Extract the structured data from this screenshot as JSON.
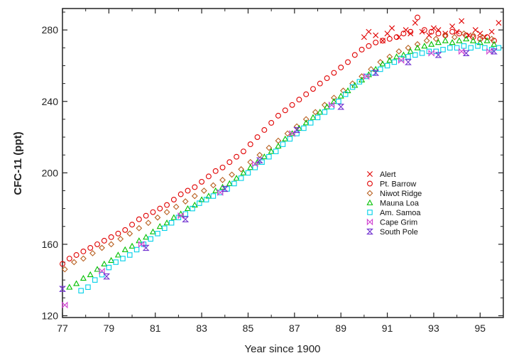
{
  "chart_data": {
    "type": "scatter",
    "title": "",
    "xlabel": "Year since 1900",
    "ylabel": "CFC-11 (ppt)",
    "xlim": [
      77,
      96
    ],
    "ylim": [
      119,
      292
    ],
    "x_ticks": [
      77,
      79,
      81,
      83,
      85,
      87,
      89,
      91,
      93,
      95
    ],
    "y_ticks": [
      120,
      160,
      200,
      240,
      280
    ],
    "grid": false,
    "legend_position": "center-right",
    "series": [
      {
        "name": "Alert",
        "color": "#e00000",
        "marker": "x",
        "x": [
          90.0,
          90.2,
          90.5,
          90.8,
          91.0,
          91.2,
          91.5,
          91.8,
          92.0,
          92.2,
          92.5,
          92.8,
          93.0,
          93.2,
          93.5,
          93.8,
          94.0,
          94.2,
          94.5,
          94.8,
          95.0,
          95.2,
          95.5,
          95.8
        ],
        "y": [
          276,
          279,
          277,
          274,
          278,
          281,
          276,
          280,
          278,
          284,
          279,
          277,
          281,
          280,
          278,
          282,
          279,
          285,
          277,
          280,
          278,
          276,
          279,
          284
        ]
      },
      {
        "name": "Pt. Barrow",
        "color": "#e00000",
        "marker": "circle",
        "x": [
          77.0,
          77.3,
          77.6,
          77.9,
          78.2,
          78.5,
          78.8,
          79.1,
          79.4,
          79.7,
          80.0,
          80.3,
          80.6,
          80.9,
          81.2,
          81.5,
          81.8,
          82.1,
          82.4,
          82.7,
          83.0,
          83.3,
          83.6,
          83.9,
          84.2,
          84.5,
          84.8,
          85.1,
          85.4,
          85.7,
          86.0,
          86.3,
          86.6,
          86.9,
          87.2,
          87.5,
          87.8,
          88.1,
          88.4,
          88.7,
          89.0,
          89.3,
          89.6,
          89.9,
          90.2,
          90.5,
          90.8,
          91.1,
          91.4,
          91.7,
          92.0,
          92.3,
          92.6,
          92.9,
          93.2,
          93.5,
          93.8,
          94.1,
          94.4,
          94.7,
          95.0,
          95.3,
          95.6
        ],
        "y": [
          149,
          152,
          154,
          156,
          158,
          160,
          162,
          164,
          166,
          168,
          171,
          174,
          176,
          178,
          180,
          182,
          185,
          188,
          190,
          192,
          195,
          198,
          201,
          203,
          206,
          209,
          212,
          216,
          220,
          224,
          228,
          232,
          235,
          238,
          241,
          244,
          247,
          250,
          253,
          256,
          259,
          262,
          266,
          269,
          271,
          273,
          274,
          275,
          276,
          278,
          279,
          287,
          280,
          279,
          278,
          277,
          279,
          278,
          277,
          276,
          275,
          276,
          274
        ]
      },
      {
        "name": "Niwot Ridge",
        "color": "#b86020",
        "marker": "diamond",
        "x": [
          77.1,
          77.5,
          77.9,
          78.3,
          78.7,
          79.1,
          79.5,
          79.9,
          80.3,
          80.7,
          81.1,
          81.5,
          81.9,
          82.3,
          82.7,
          83.1,
          83.5,
          83.9,
          84.3,
          84.7,
          85.1,
          85.5,
          85.9,
          86.3,
          86.7,
          87.1,
          87.5,
          87.9,
          88.3,
          88.7,
          89.1,
          89.5,
          89.9,
          90.3,
          90.7,
          91.1,
          91.5,
          91.9,
          92.3,
          92.7,
          93.1,
          93.5,
          93.9,
          94.3,
          94.7,
          95.1,
          95.5
        ],
        "y": [
          146,
          150,
          152,
          155,
          158,
          160,
          163,
          166,
          169,
          172,
          175,
          178,
          181,
          184,
          187,
          190,
          193,
          196,
          199,
          202,
          206,
          210,
          214,
          218,
          222,
          226,
          230,
          234,
          238,
          242,
          246,
          250,
          254,
          258,
          262,
          265,
          268,
          270,
          272,
          274,
          275,
          277,
          276,
          278,
          277,
          276,
          275
        ]
      },
      {
        "name": "Mauna Loa",
        "color": "#00c000",
        "marker": "triangle",
        "x": [
          77.3,
          77.6,
          77.9,
          78.2,
          78.5,
          78.8,
          79.1,
          79.4,
          79.7,
          80.0,
          80.3,
          80.6,
          80.9,
          81.2,
          81.5,
          81.8,
          82.1,
          82.4,
          82.7,
          83.0,
          83.3,
          83.6,
          83.9,
          84.2,
          84.5,
          84.8,
          85.1,
          85.4,
          85.7,
          86.0,
          86.3,
          86.6,
          86.9,
          87.2,
          87.5,
          87.8,
          88.1,
          88.4,
          88.7,
          89.0,
          89.3,
          89.6,
          89.9,
          90.2,
          90.5,
          90.8,
          91.1,
          91.4,
          91.7,
          92.0,
          92.3,
          92.6,
          92.9,
          93.2,
          93.5,
          93.8,
          94.1,
          94.4,
          94.7,
          95.0,
          95.3,
          95.6
        ],
        "y": [
          136,
          138,
          141,
          143,
          146,
          149,
          151,
          154,
          157,
          159,
          162,
          164,
          167,
          170,
          172,
          175,
          177,
          180,
          182,
          185,
          187,
          190,
          192,
          194,
          197,
          200,
          203,
          206,
          209,
          212,
          215,
          219,
          222,
          225,
          228,
          231,
          234,
          237,
          240,
          243,
          246,
          249,
          252,
          255,
          258,
          261,
          263,
          265,
          266,
          268,
          270,
          271,
          272,
          273,
          274,
          273,
          274,
          275,
          274,
          273,
          274,
          272
        ]
      },
      {
        "name": "Am. Samoa",
        "color": "#00d0e8",
        "marker": "square",
        "x": [
          77.8,
          78.1,
          78.4,
          78.7,
          79.0,
          79.3,
          79.6,
          79.9,
          80.2,
          80.5,
          80.8,
          81.1,
          81.4,
          81.7,
          82.0,
          82.3,
          82.6,
          82.9,
          83.2,
          83.5,
          83.8,
          84.1,
          84.4,
          84.7,
          85.0,
          85.3,
          85.6,
          85.9,
          86.2,
          86.5,
          86.8,
          87.1,
          87.4,
          87.7,
          88.0,
          88.3,
          88.6,
          88.9,
          89.2,
          89.5,
          89.8,
          90.1,
          90.4,
          90.7,
          91.0,
          91.3,
          91.6,
          91.9,
          92.2,
          92.5,
          92.8,
          93.1,
          93.4,
          93.7,
          94.0,
          94.3,
          94.6,
          94.9,
          95.2,
          95.5,
          95.8
        ],
        "y": [
          134,
          136,
          140,
          143,
          147,
          150,
          152,
          154,
          157,
          160,
          163,
          166,
          169,
          172,
          175,
          177,
          180,
          183,
          185,
          187,
          189,
          191,
          194,
          197,
          200,
          203,
          206,
          209,
          212,
          216,
          219,
          222,
          225,
          228,
          231,
          234,
          237,
          240,
          244,
          248,
          251,
          254,
          256,
          258,
          260,
          262,
          264,
          265,
          266,
          267,
          268,
          268,
          269,
          270,
          270,
          271,
          270,
          271,
          270,
          269,
          270
        ]
      },
      {
        "name": "Cape Grim",
        "color": "#d040d0",
        "marker": "bowtie-h",
        "x": [
          77.1,
          78.7,
          80.4,
          82.1,
          83.8,
          85.3,
          86.9,
          88.6,
          90.1,
          91.6,
          92.9,
          94.2,
          95.4
        ],
        "y": [
          126,
          145,
          160,
          176,
          189,
          205,
          222,
          238,
          254,
          263,
          267,
          268,
          268
        ]
      },
      {
        "name": "South Pole",
        "color": "#7030d0",
        "marker": "bowtie-v",
        "x": [
          77.0,
          78.9,
          80.6,
          82.3,
          84.0,
          85.5,
          87.1,
          89.0,
          90.5,
          91.9,
          93.2,
          94.4,
          95.6
        ],
        "y": [
          135,
          142,
          158,
          174,
          191,
          207,
          224,
          237,
          256,
          262,
          266,
          267,
          268
        ]
      }
    ]
  }
}
